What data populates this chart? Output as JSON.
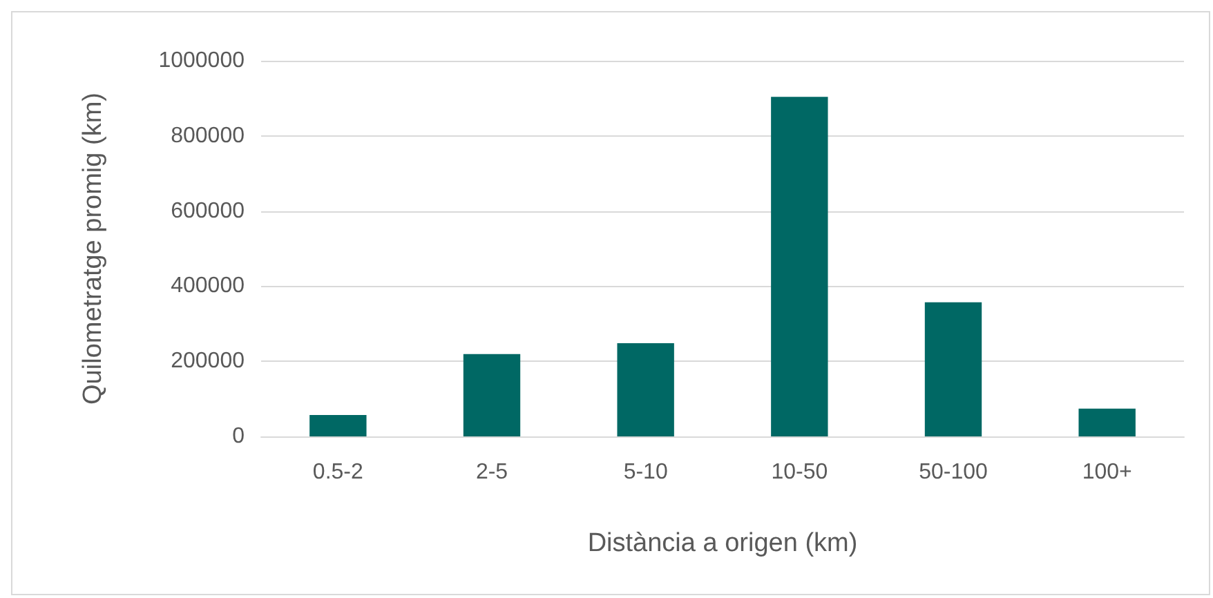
{
  "chart_data": {
    "type": "bar",
    "xlabel": "Distància a origen (km)",
    "ylabel": "Quilometratge promig (km)",
    "categories": [
      "0.5-2",
      "2-5",
      "5-10",
      "10-50",
      "50-100",
      "100+"
    ],
    "values": [
      57000,
      219000,
      248000,
      904000,
      357000,
      74000
    ],
    "color": "#006864",
    "ylim": [
      0,
      1000000
    ],
    "yticks": [
      0,
      200000,
      400000,
      600000,
      800000,
      1000000
    ],
    "grid": "y"
  }
}
